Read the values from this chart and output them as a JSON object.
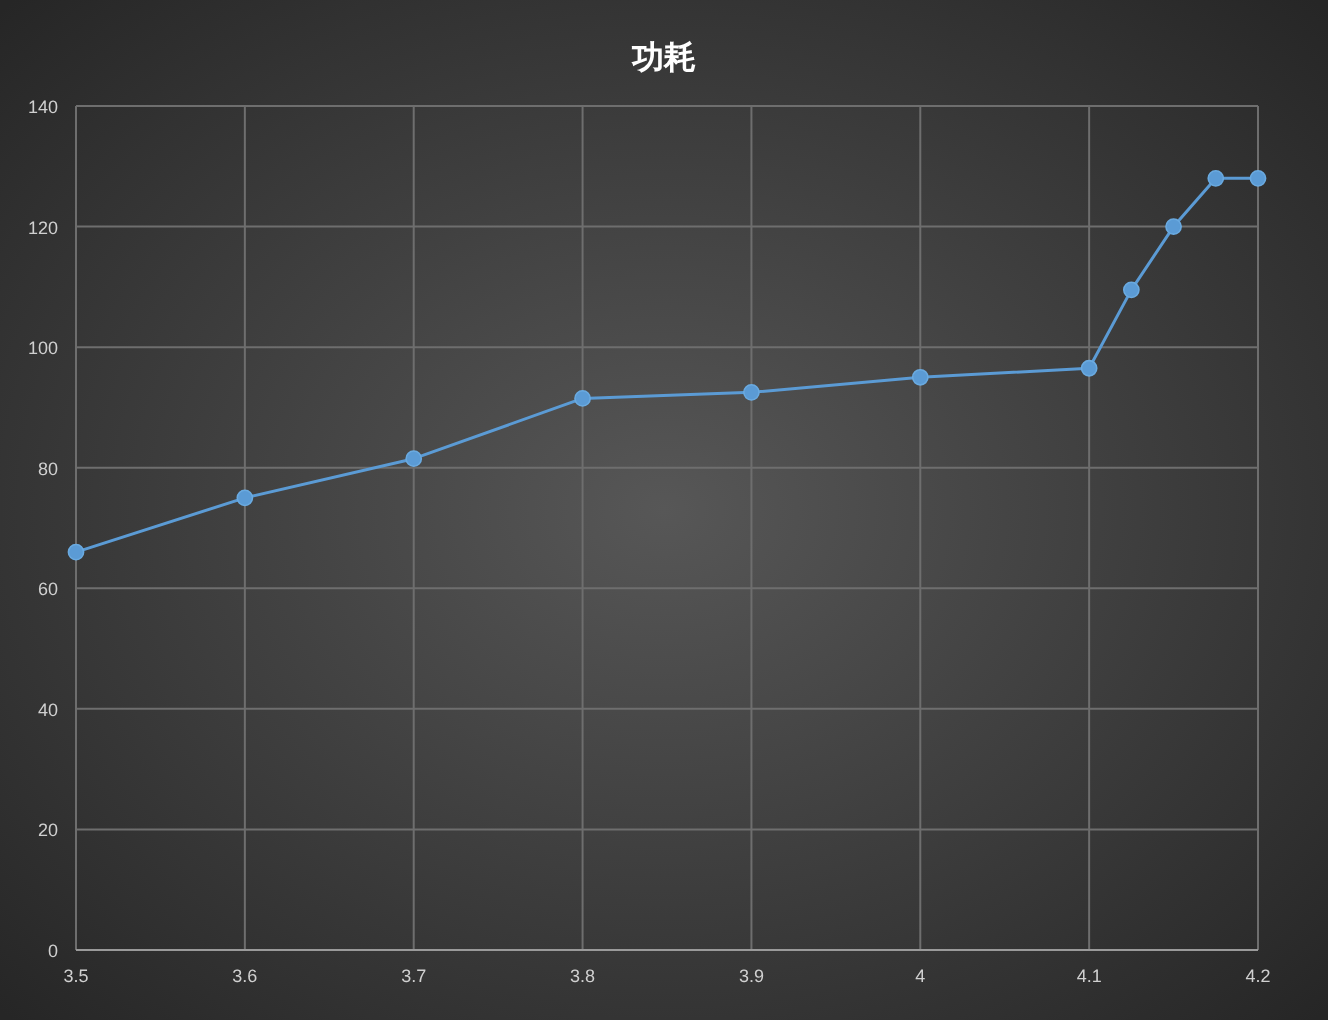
{
  "chart_data": {
    "type": "line",
    "title": "功耗",
    "x": [
      3.5,
      3.6,
      3.7,
      3.8,
      3.9,
      4.0,
      4.1,
      4.125,
      4.15,
      4.175,
      4.2
    ],
    "series": [
      {
        "color": "#5b9bd5",
        "values": [
          66,
          75,
          81.5,
          91.5,
          92.5,
          95,
          96.5,
          109.5,
          120,
          128,
          128
        ]
      }
    ],
    "xlim": [
      3.5,
      4.2
    ],
    "xticks": [
      3.5,
      3.6,
      3.7,
      3.8,
      3.9,
      4,
      4.1,
      4.2
    ],
    "ylim": [
      0,
      140
    ],
    "yticks": [
      0,
      20,
      40,
      60,
      80,
      100,
      120,
      140
    ],
    "grid": true,
    "marker": "circle",
    "line_style": "solid"
  }
}
